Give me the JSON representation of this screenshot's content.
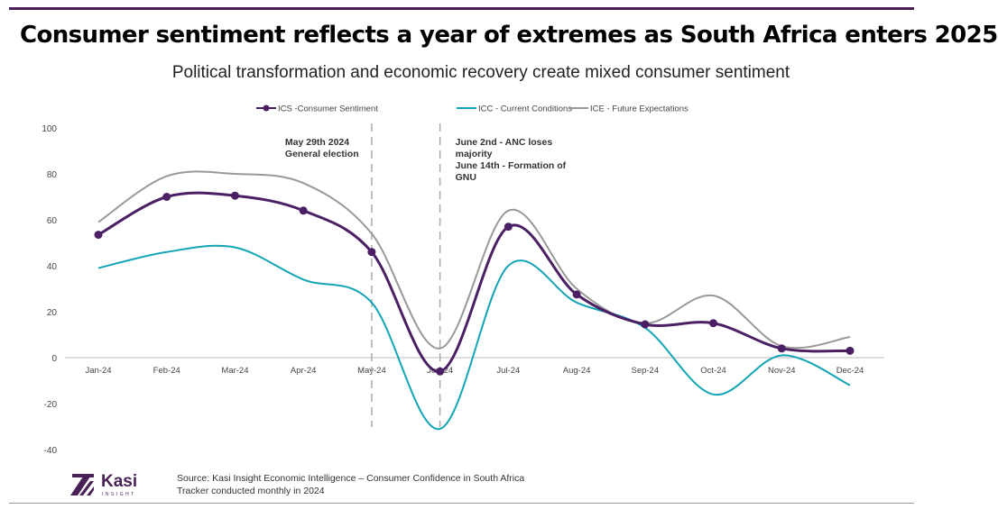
{
  "header": {
    "title": "Consumer sentiment reflects a year of extremes as South Africa enters 2025",
    "subtitle": "Political transformation and economic recovery create mixed consumer sentiment"
  },
  "chart_data": {
    "type": "line",
    "categories": [
      "Jan-24",
      "Feb-24",
      "Mar-24",
      "Apr-24",
      "May-24",
      "Jun-24",
      "Jul-24",
      "Aug-24",
      "Sep-24",
      "Oct-24",
      "Nov-24",
      "Dec-24"
    ],
    "ylim": [
      -40,
      100
    ],
    "yticks": [
      "100",
      "80",
      "60",
      "40",
      "20",
      "0",
      "-20",
      "-40"
    ],
    "grid": false,
    "legend": "top",
    "series": [
      {
        "name": "ICS -Consumer Sentiment",
        "color": "#4b1f63",
        "markers": true,
        "values": [
          53.5,
          70,
          70.5,
          64,
          46,
          -6,
          57,
          27.5,
          14.5,
          15,
          4,
          3
        ]
      },
      {
        "name": "ICC - Current Conditions",
        "color": "#12a5b5",
        "markers": false,
        "values": [
          39,
          46,
          48,
          34,
          24,
          -31,
          40,
          24,
          13,
          -16,
          1,
          -12
        ]
      },
      {
        "name": "ICE - Future Expectations",
        "color": "#999999",
        "markers": false,
        "values": [
          59,
          79,
          80,
          76,
          54,
          4,
          64,
          30,
          15,
          27,
          5,
          9
        ]
      }
    ],
    "annotations": [
      {
        "category": "May-24",
        "lines": [
          "May 29th 2024",
          "General election"
        ]
      },
      {
        "category": "Jun-24",
        "lines": [
          "June 2nd - ANC loses",
          "majority",
          "June 14th - Formation of",
          "GNU"
        ]
      }
    ]
  },
  "footer": {
    "source": "Source: Kasi Insight Economic Intelligence – Consumer Confidence in South Africa",
    "note": "Tracker conducted monthly in 2024",
    "logo_text": "Kasi",
    "logo_sub": "INSIGHT"
  }
}
